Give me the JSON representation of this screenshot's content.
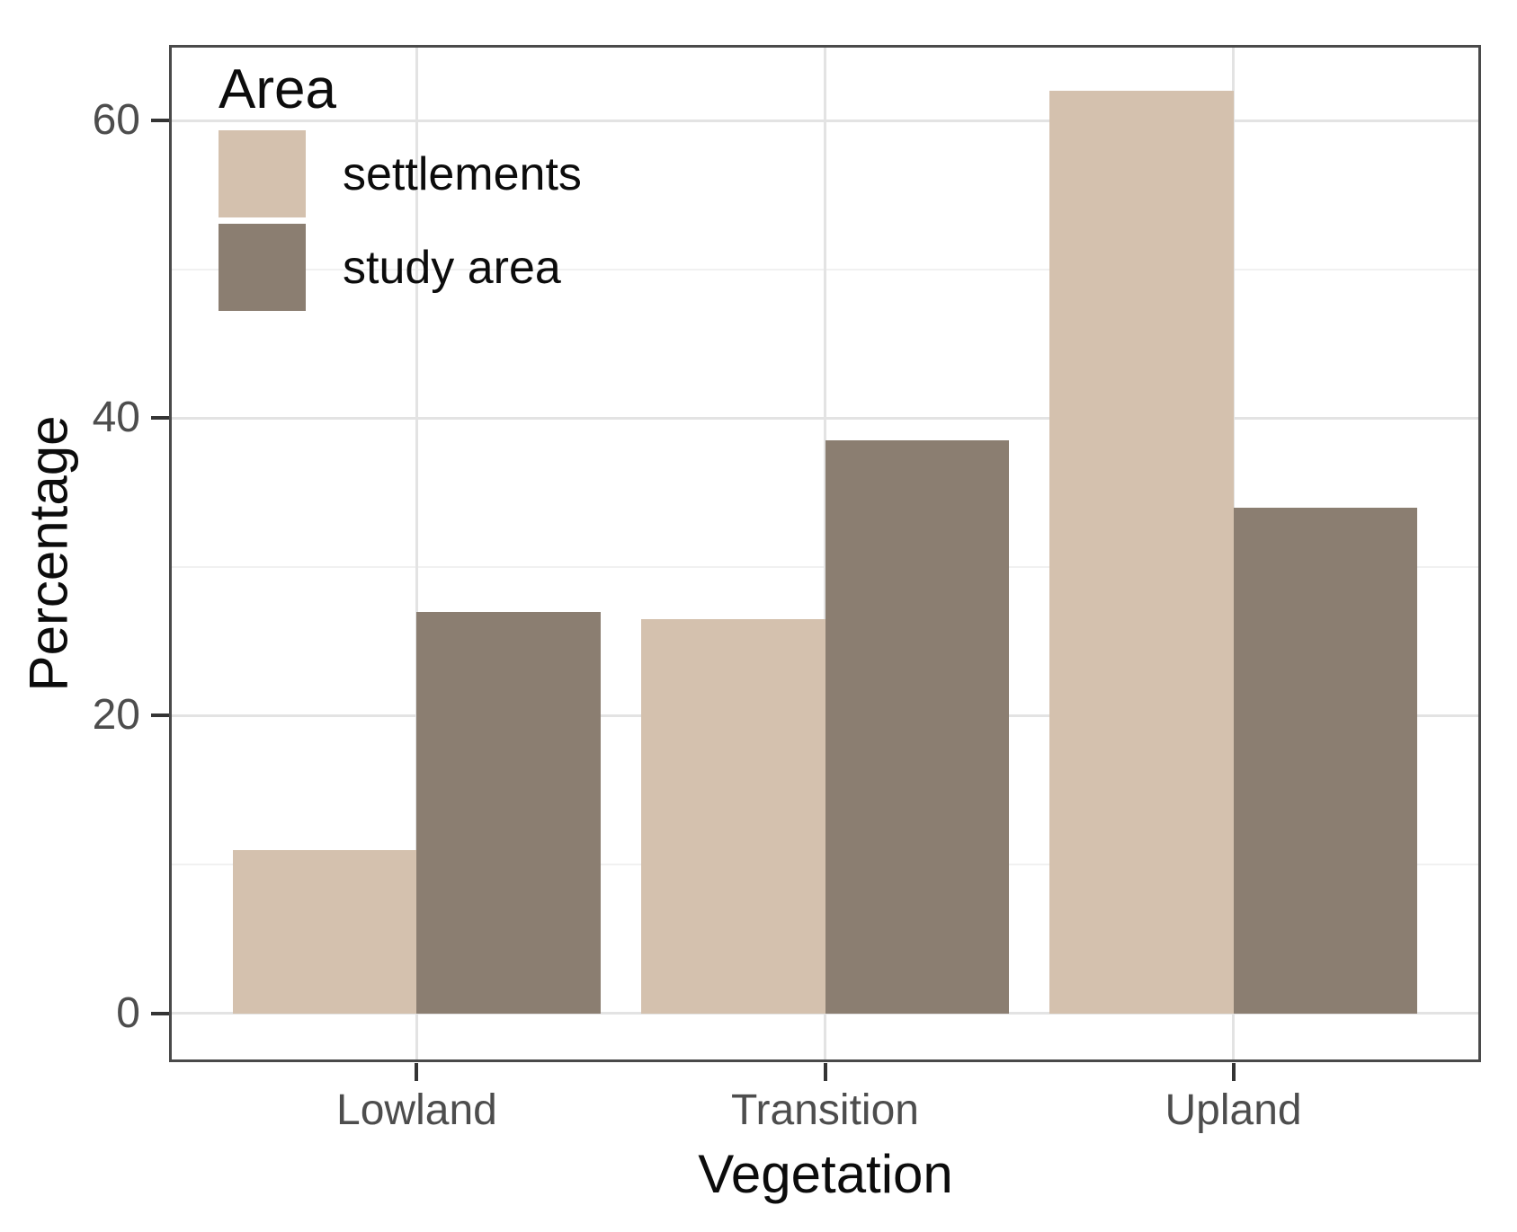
{
  "chart_data": {
    "type": "bar",
    "subtype": "grouped",
    "title": "",
    "xlabel": "Vegetation",
    "ylabel": "Percentage",
    "categories": [
      "Lowland",
      "Transition",
      "Upland"
    ],
    "series": [
      {
        "name": "settlements",
        "color": "#d4c1ae",
        "values": [
          11,
          26.5,
          62
        ]
      },
      {
        "name": "study area",
        "color": "#8b7e71",
        "values": [
          27,
          38.5,
          34
        ]
      }
    ],
    "ylim": [
      -3.1,
      64.9
    ],
    "yticks": [
      0,
      20,
      40,
      60
    ],
    "yticks_minor": [
      10,
      30,
      50
    ],
    "grid": "major and minor horizontal, major vertical at category centers",
    "legend": {
      "title": "Area",
      "position": "inside-top-left"
    },
    "bar_width_fraction": 0.9,
    "x_expansion": 0.6
  },
  "colors": {
    "panel_border": "#4a4a4a",
    "grid_major": "#e3e3e3",
    "grid_minor": "#f1f1f1",
    "tick_mark": "#343434",
    "tick_label": "#4d4d4d",
    "axis_title": "#0c0c0c",
    "background": "#ffffff"
  }
}
